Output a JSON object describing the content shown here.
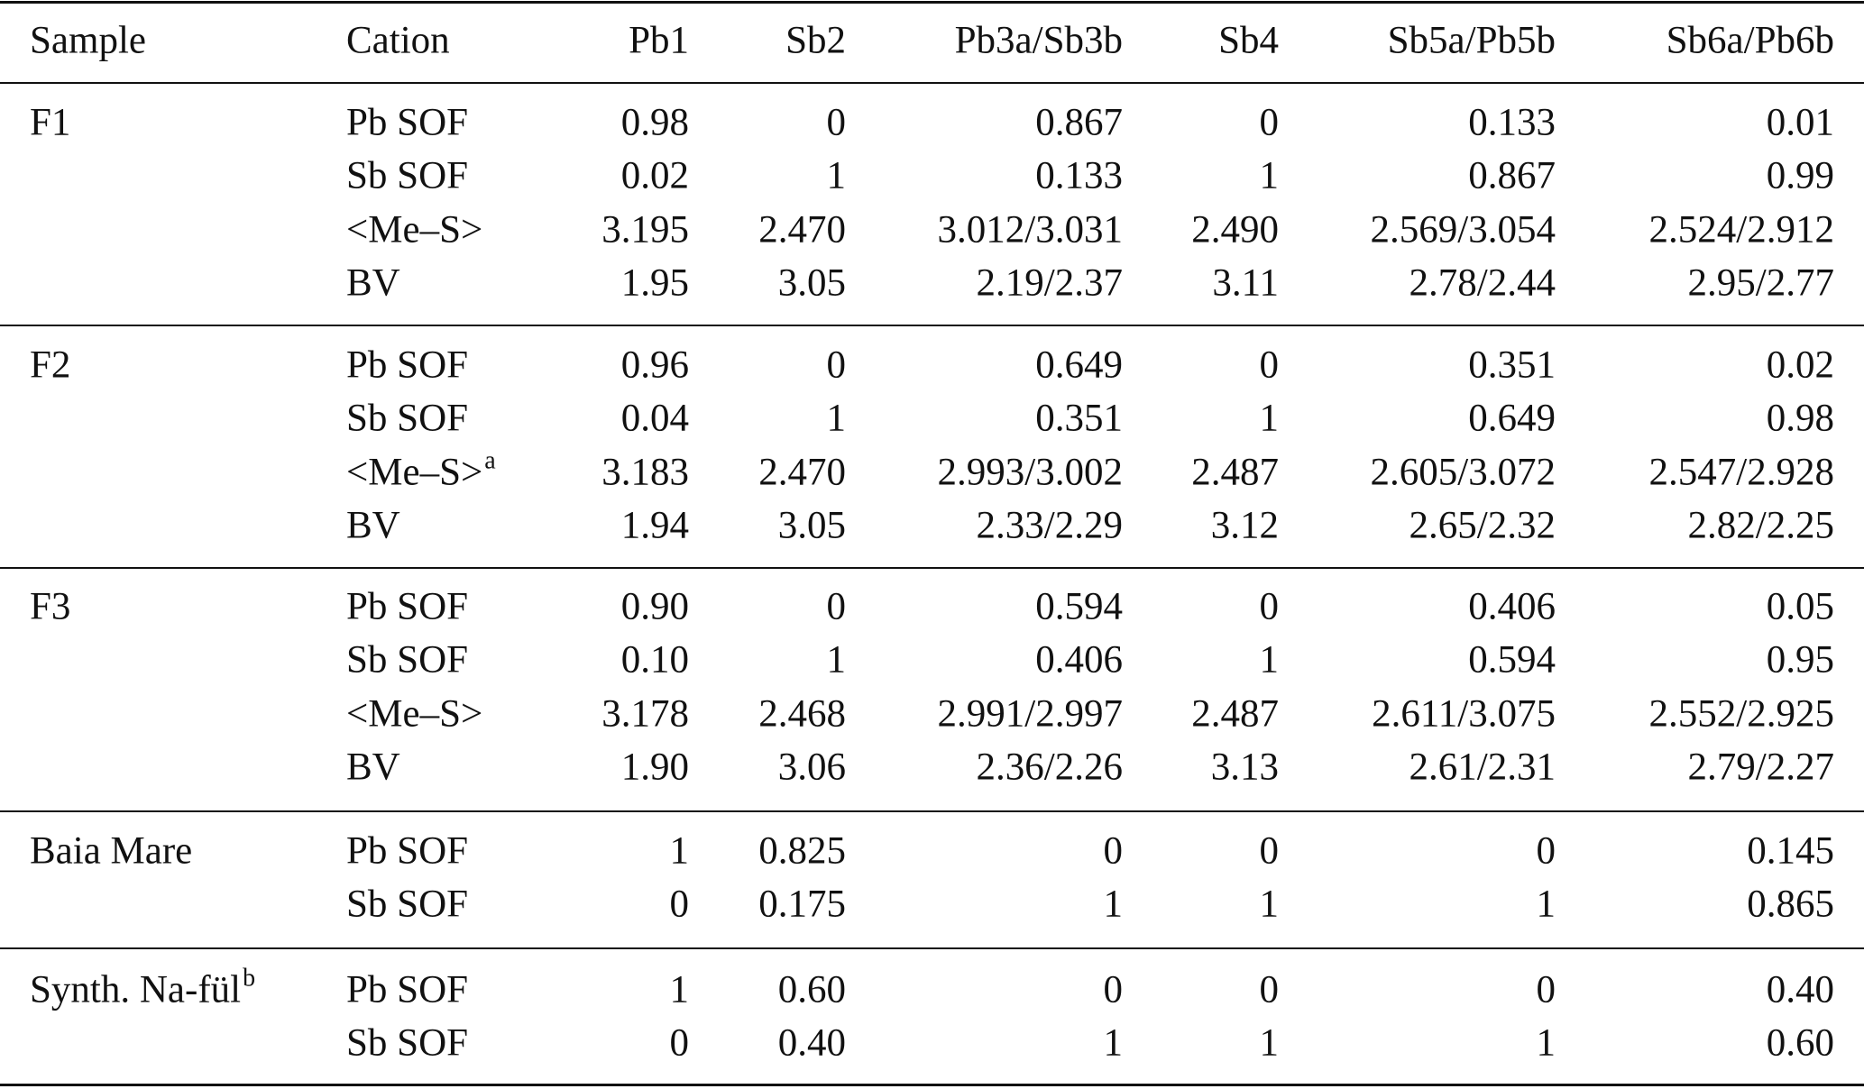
{
  "table": {
    "headers": [
      "Sample",
      "Cation",
      "Pb1",
      "Sb2",
      "Pb3a/Sb3b",
      "Sb4",
      "Sb5a/Pb5b",
      "Sb6a/Pb6b"
    ],
    "groups": [
      {
        "sample": "F1",
        "sample_sup": "",
        "rows": [
          {
            "cation": "Pb SOF",
            "sup": "",
            "values": [
              "0.98",
              "0",
              "0.867",
              "0",
              "0.133",
              "0.01"
            ]
          },
          {
            "cation": "Sb SOF",
            "sup": "",
            "values": [
              "0.02",
              "1",
              "0.133",
              "1",
              "0.867",
              "0.99"
            ]
          },
          {
            "cation": "<Me–S>",
            "sup": "",
            "values": [
              "3.195",
              "2.470",
              "3.012/3.031",
              "2.490",
              "2.569/3.054",
              "2.524/2.912"
            ]
          },
          {
            "cation": "BV",
            "sup": "",
            "values": [
              "1.95",
              "3.05",
              "2.19/2.37",
              "3.11",
              "2.78/2.44",
              "2.95/2.77"
            ]
          }
        ]
      },
      {
        "sample": "F2",
        "sample_sup": "",
        "rows": [
          {
            "cation": "Pb SOF",
            "sup": "",
            "values": [
              "0.96",
              "0",
              "0.649",
              "0",
              "0.351",
              "0.02"
            ]
          },
          {
            "cation": "Sb SOF",
            "sup": "",
            "values": [
              "0.04",
              "1",
              "0.351",
              "1",
              "0.649",
              "0.98"
            ]
          },
          {
            "cation": "<Me–S>",
            "sup": "a",
            "values": [
              "3.183",
              "2.470",
              "2.993/3.002",
              "2.487",
              "2.605/3.072",
              "2.547/2.928"
            ]
          },
          {
            "cation": "BV",
            "sup": "",
            "values": [
              "1.94",
              "3.05",
              "2.33/2.29",
              "3.12",
              "2.65/2.32",
              "2.82/2.25"
            ]
          }
        ]
      },
      {
        "sample": "F3",
        "sample_sup": "",
        "rows": [
          {
            "cation": "Pb SOF",
            "sup": "",
            "values": [
              "0.90",
              "0",
              "0.594",
              "0",
              "0.406",
              "0.05"
            ]
          },
          {
            "cation": "Sb SOF",
            "sup": "",
            "values": [
              "0.10",
              "1",
              "0.406",
              "1",
              "0.594",
              "0.95"
            ]
          },
          {
            "cation": "<Me–S>",
            "sup": "",
            "values": [
              "3.178",
              "2.468",
              "2.991/2.997",
              "2.487",
              "2.611/3.075",
              "2.552/2.925"
            ]
          },
          {
            "cation": "BV",
            "sup": "",
            "values": [
              "1.90",
              "3.06",
              "2.36/2.26",
              "3.13",
              "2.61/2.31",
              "2.79/2.27"
            ]
          }
        ]
      },
      {
        "sample": "Baia Mare",
        "sample_sup": "",
        "rows": [
          {
            "cation": "Pb SOF",
            "sup": "",
            "values": [
              "1",
              "0.825",
              "0",
              "0",
              "0",
              "0.145"
            ]
          },
          {
            "cation": "Sb SOF",
            "sup": "",
            "values": [
              "0",
              "0.175",
              "1",
              "1",
              "1",
              "0.865"
            ]
          }
        ]
      },
      {
        "sample": "Synth. Na-fül",
        "sample_sup": "b",
        "rows": [
          {
            "cation": "Pb SOF",
            "sup": "",
            "values": [
              "1",
              "0.60",
              "0",
              "0",
              "0",
              "0.40"
            ]
          },
          {
            "cation": "Sb SOF",
            "sup": "",
            "values": [
              "0",
              "0.40",
              "1",
              "1",
              "1",
              "0.60"
            ]
          }
        ]
      }
    ]
  }
}
